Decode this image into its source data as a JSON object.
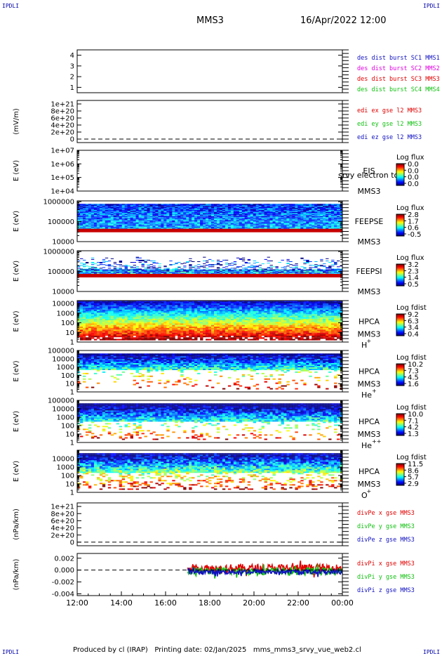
{
  "header": {
    "corner_label": "IPDLI",
    "title": "MMS3",
    "date_label": "16/Apr/2022 12:00"
  },
  "footer": {
    "text": "Produced by cl (IRAP)   Printing date: 02/Jan/2025   mms_mms3_srvy_vue_web2.cl"
  },
  "colors": {
    "blue": "#1010c0",
    "magenta": "#e000e0",
    "red": "#e00000",
    "green": "#10c010"
  },
  "chart_data": [
    {
      "type": "line",
      "id": "des-dist-burst",
      "ylim": [
        0.5,
        4.5
      ],
      "ytick_labels": [
        "4",
        "3",
        "2",
        "1"
      ],
      "ytick_values": [
        4,
        3,
        2,
        1
      ],
      "ylabel": "",
      "legend": [
        "des dist burst SC1 MMS1",
        "des dist burst SC2 MMS2",
        "des dist burst SC3 MMS3",
        "des dist burst SC4 MMS4"
      ],
      "legend_colors": [
        "blue",
        "magenta",
        "red",
        "green"
      ]
    },
    {
      "type": "line",
      "id": "edi-e-gse",
      "ylim": [
        -1e+20,
        1.1e+21
      ],
      "ytick_labels": [
        "1e+21",
        "8e+20",
        "6e+20",
        "4e+20",
        "2e+20",
        "0"
      ],
      "ytick_values": [
        1e+21,
        8e+20,
        6e+20,
        4e+20,
        2e+20,
        0
      ],
      "ylabel": "(mV/m)",
      "zero_line": true,
      "legend": [
        "edi ex gse l2 MMS3",
        "edi ey gse l2 MMS3",
        "edi ez gse l2 MMS3"
      ],
      "legend_colors": [
        "red",
        "green",
        "blue"
      ]
    },
    {
      "type": "heatmap",
      "id": "eis",
      "ylog": true,
      "ylim": [
        10000.0,
        10000000.0
      ],
      "ytick_labels": [
        "1e+07",
        "1e+06",
        "1e+05",
        "1e+04"
      ],
      "ytick_values": [
        10000000.0,
        1000000.0,
        100000.0,
        10000.0
      ],
      "ylabel": "E (eV)",
      "instrument": [
        "EIS",
        "MMS3"
      ],
      "overlay_text": "srvy electron to",
      "colorbar_title": "Log flux",
      "colorbar_ticks": [
        "0.0",
        "0.0",
        "0.0",
        "0.0"
      ],
      "data_present": false
    },
    {
      "type": "heatmap",
      "id": "feeps-e",
      "ylog": true,
      "ylim": [
        10000.0,
        1100000.0
      ],
      "ytick_labels": [
        "1000000",
        "100000",
        "10000"
      ],
      "ytick_values": [
        1000000.0,
        100000.0,
        10000.0
      ],
      "ylabel": "E (eV)",
      "instrument": [
        "FEEPSE",
        "MMS3"
      ],
      "colorbar_title": "Log flux",
      "colorbar_ticks": [
        "2.8",
        "1.7",
        "0.6",
        "-0.5"
      ],
      "data_present": true,
      "data_x_range_hours": [
        0,
        12
      ],
      "data_e_range": [
        35000.0,
        700000.0
      ],
      "low_band_e": 36000.0,
      "profile": "flat",
      "noise": 0.3
    },
    {
      "type": "heatmap",
      "id": "feeps-i",
      "ylog": true,
      "ylim": [
        10000.0,
        1100000.0
      ],
      "ytick_labels": [
        "1000000",
        "100000",
        "10000"
      ],
      "ytick_values": [
        1000000.0,
        100000.0,
        10000.0
      ],
      "ylabel": "E (eV)",
      "instrument": [
        "FEEPSI",
        "MMS3"
      ],
      "colorbar_title": "Log flux",
      "colorbar_ticks": [
        "3.2",
        "2.3",
        "1.4",
        "0.5"
      ],
      "data_present": true,
      "data_x_range_hours": [
        0,
        12
      ],
      "data_e_range": [
        60000.0,
        500000.0
      ],
      "low_band_e": 62000.0,
      "profile": "sparse",
      "noise": 0.5
    },
    {
      "type": "heatmap",
      "id": "hpca-h",
      "ylog": true,
      "ylim": [
        1,
        20000.0
      ],
      "ytick_labels": [
        "10000",
        "1000",
        "100",
        "10",
        "1"
      ],
      "ytick_values": [
        10000,
        1000,
        100,
        10,
        1
      ],
      "ylabel": "E (eV)",
      "instrument": [
        "HPCA",
        "MMS3"
      ],
      "species": "H",
      "species_charge": "+",
      "colorbar_title": "Log fdist",
      "colorbar_ticks": [
        "9.2",
        "6.3",
        "3.4",
        "0.4"
      ],
      "data_present": true,
      "data_x_range_hours": [
        0,
        12
      ],
      "data_e_range": [
        1.5,
        15000.0
      ],
      "profile": "h",
      "noise": 0.2
    },
    {
      "type": "heatmap",
      "id": "hpca-he",
      "ylog": true,
      "ylim": [
        1,
        100000.0
      ],
      "ytick_labels": [
        "100000",
        "10000",
        "1000",
        "100",
        "10",
        "1"
      ],
      "ytick_values": [
        100000,
        10000,
        1000,
        100,
        10,
        1
      ],
      "ylabel": "E (eV)",
      "instrument": [
        "HPCA",
        "MMS3"
      ],
      "species": "He",
      "species_charge": "+",
      "colorbar_title": "Log fdist",
      "colorbar_ticks": [
        "10.2",
        "7.3",
        "4.5",
        "1.6"
      ],
      "data_present": true,
      "data_x_range_hours": [
        0,
        12
      ],
      "data_e_range": [
        2,
        30000.0
      ],
      "profile": "he",
      "noise": 0.3
    },
    {
      "type": "heatmap",
      "id": "hpca-hepp",
      "ylog": true,
      "ylim": [
        1,
        100000.0
      ],
      "ytick_labels": [
        "100000",
        "10000",
        "1000",
        "100",
        "10",
        "1"
      ],
      "ytick_values": [
        100000,
        10000,
        1000,
        100,
        10,
        1
      ],
      "ylabel": "E (eV)",
      "instrument": [
        "HPCA",
        "MMS3"
      ],
      "species": "He",
      "species_charge": "++",
      "colorbar_title": "Log fdist",
      "colorbar_ticks": [
        "10.0",
        "7.1",
        "4.2",
        "1.3"
      ],
      "data_present": true,
      "data_x_range_hours": [
        0,
        12
      ],
      "data_e_range": [
        2,
        30000.0
      ],
      "profile": "hepp",
      "noise": 0.3
    },
    {
      "type": "heatmap",
      "id": "hpca-o",
      "ylog": true,
      "ylim": [
        1,
        100000.0
      ],
      "ytick_labels": [
        "10000",
        "1000",
        "100",
        "10",
        "1"
      ],
      "ytick_values": [
        10000,
        1000,
        100,
        10,
        1
      ],
      "ylabel": "E (eV)",
      "instrument": [
        "HPCA",
        "MMS3"
      ],
      "species": "O",
      "species_charge": "+",
      "colorbar_title": "Log fdist",
      "colorbar_ticks": [
        "11.5",
        "8.6",
        "5.7",
        "2.9"
      ],
      "data_present": true,
      "data_x_range_hours": [
        0,
        12
      ],
      "data_e_range": [
        2,
        30000.0
      ],
      "profile": "o",
      "noise": 0.35
    },
    {
      "type": "line",
      "id": "divpe",
      "ylim": [
        -1e+20,
        1.1e+21
      ],
      "ytick_labels": [
        "1e+21",
        "8e+20",
        "6e+20",
        "4e+20",
        "2e+20",
        "0"
      ],
      "ytick_values": [
        1e+21,
        8e+20,
        6e+20,
        4e+20,
        2e+20,
        0
      ],
      "ylabel": "(nPa/km)",
      "zero_line": true,
      "legend": [
        "divPe x gse MMS3",
        "divPe y gse MMS3",
        "divPe z gse MMS3"
      ],
      "legend_colors": [
        "red",
        "green",
        "blue"
      ]
    },
    {
      "type": "line",
      "id": "divpi",
      "ylim": [
        -0.0043,
        0.0028
      ],
      "ytick_labels": [
        "0.002",
        "0.000",
        "-0.002",
        "-0.004"
      ],
      "ytick_values": [
        0.002,
        0.0,
        -0.002,
        -0.004
      ],
      "ylabel": "(nPa/km)",
      "zero_line": true,
      "legend": [
        "divPi x gse MMS3",
        "divPi y gse MMS3",
        "divPi z gse MMS3"
      ],
      "legend_colors": [
        "red",
        "green",
        "blue"
      ],
      "data_x_start_hours": 5.0,
      "series": [
        {
          "name": "divPi x gse MMS3",
          "color": "red",
          "mean": 0.0003,
          "amp": 0.0007
        },
        {
          "name": "divPi y gse MMS3",
          "color": "green",
          "mean": -0.0002,
          "amp": 0.0006
        },
        {
          "name": "divPi z gse MMS3",
          "color": "blue",
          "mean": -0.0003,
          "amp": 0.0004
        }
      ]
    }
  ],
  "x_axis": {
    "range_hours": [
      0,
      12
    ],
    "tick_labels": [
      "12:00",
      "14:00",
      "16:00",
      "18:00",
      "20:00",
      "22:00",
      "00:00"
    ],
    "tick_hours": [
      0,
      2,
      4,
      6,
      8,
      10,
      12
    ]
  }
}
